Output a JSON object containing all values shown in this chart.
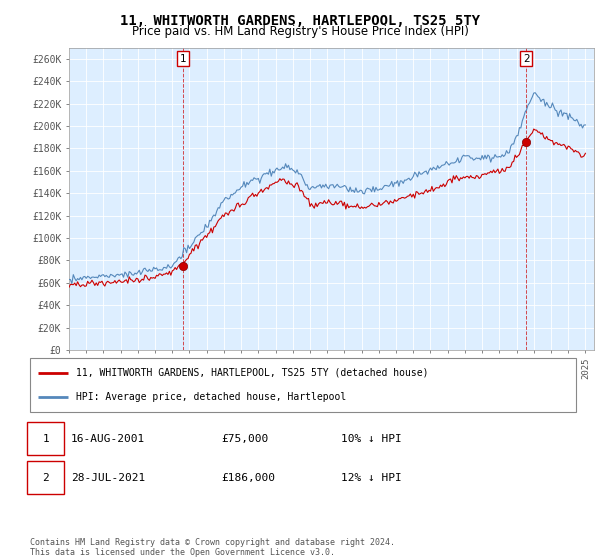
{
  "title": "11, WHITWORTH GARDENS, HARTLEPOOL, TS25 5TY",
  "subtitle": "Price paid vs. HM Land Registry's House Price Index (HPI)",
  "title_fontsize": 10,
  "subtitle_fontsize": 8.5,
  "ylim": [
    0,
    270000
  ],
  "yticks": [
    0,
    20000,
    40000,
    60000,
    80000,
    100000,
    120000,
    140000,
    160000,
    180000,
    200000,
    220000,
    240000,
    260000
  ],
  "ytick_labels": [
    "£0",
    "£20K",
    "£40K",
    "£60K",
    "£80K",
    "£100K",
    "£120K",
    "£140K",
    "£160K",
    "£180K",
    "£200K",
    "£220K",
    "£240K",
    "£260K"
  ],
  "xlim_start": 1995.0,
  "xlim_end": 2025.5,
  "point1_x": 2001.62,
  "point1_y": 75000,
  "point1_label": "1",
  "point2_x": 2021.57,
  "point2_y": 186000,
  "point2_label": "2",
  "line_red_color": "#cc0000",
  "line_blue_color": "#5588bb",
  "fill_color": "#ddeeff",
  "grid_color": "#cccccc",
  "bg_color": "#ffffff",
  "legend_label_red": "11, WHITWORTH GARDENS, HARTLEPOOL, TS25 5TY (detached house)",
  "legend_label_blue": "HPI: Average price, detached house, Hartlepool",
  "annotation1_date": "16-AUG-2001",
  "annotation1_price": "£75,000",
  "annotation1_hpi": "10% ↓ HPI",
  "annotation2_date": "28-JUL-2021",
  "annotation2_price": "£186,000",
  "annotation2_hpi": "12% ↓ HPI",
  "footer": "Contains HM Land Registry data © Crown copyright and database right 2024.\nThis data is licensed under the Open Government Licence v3.0."
}
